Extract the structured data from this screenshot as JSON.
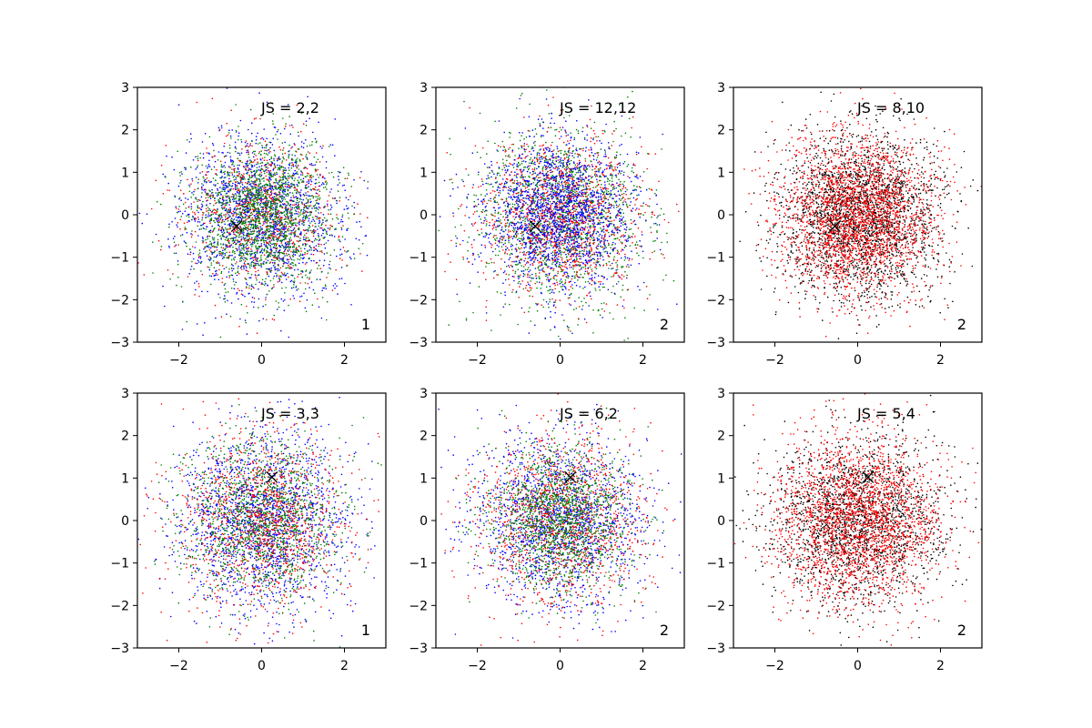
{
  "chart_data": [
    {
      "type": "scatter",
      "annotation": "JS = 2,2",
      "corner_label": "1",
      "marker": {
        "x": -0.6,
        "y": -0.27,
        "color": "#000000",
        "symbol": "x"
      },
      "xlim": [
        -3,
        3
      ],
      "ylim": [
        -3,
        3
      ],
      "xticks": [
        -2,
        0,
        2
      ],
      "yticks": [
        -3,
        -2,
        -1,
        0,
        1,
        2,
        3
      ],
      "series": [
        {
          "color": "#0000ff",
          "n": 1700,
          "mean": [
            0,
            0
          ],
          "std": 0.95
        },
        {
          "color": "#ff0000",
          "n": 850,
          "mean": [
            0,
            0
          ],
          "std": 0.9
        },
        {
          "color": "#008000",
          "n": 1700,
          "mean": [
            0,
            0
          ],
          "std": 0.85
        }
      ]
    },
    {
      "type": "scatter",
      "annotation": "JS = 12,12",
      "corner_label": "2",
      "marker": {
        "x": -0.6,
        "y": -0.27,
        "color": "#000000",
        "symbol": "x"
      },
      "xlim": [
        -3,
        3
      ],
      "ylim": [
        -3,
        3
      ],
      "xticks": [
        -2,
        0,
        2
      ],
      "yticks": [
        -3,
        -2,
        -1,
        0,
        1,
        2,
        3
      ],
      "series": [
        {
          "color": "#008000",
          "n": 1600,
          "mean": [
            0,
            0
          ],
          "std": 1.0
        },
        {
          "color": "#ff0000",
          "n": 1300,
          "mean": [
            0,
            0
          ],
          "std": 0.95
        },
        {
          "color": "#0000ff",
          "n": 1800,
          "mean": [
            0,
            0
          ],
          "std": 0.9
        }
      ]
    },
    {
      "type": "scatter",
      "annotation": "JS = 8,10",
      "corner_label": "2",
      "marker": {
        "x": -0.55,
        "y": -0.27,
        "color": "#000000",
        "symbol": "x"
      },
      "xlim": [
        -3,
        3
      ],
      "ylim": [
        -3,
        3
      ],
      "xticks": [
        -2,
        0,
        2
      ],
      "yticks": [
        -3,
        -2,
        -1,
        0,
        1,
        2,
        3
      ],
      "series": [
        {
          "color": "#000000",
          "n": 2400,
          "mean": [
            0,
            0
          ],
          "std": 0.95
        },
        {
          "color": "#ff0000",
          "n": 2600,
          "mean": [
            0,
            0
          ],
          "std": 0.95
        }
      ]
    },
    {
      "type": "scatter",
      "annotation": "JS = 3,3",
      "corner_label": "1",
      "marker": {
        "x": 0.25,
        "y": 1.02,
        "color": "#000000",
        "symbol": "x"
      },
      "xlim": [
        -3,
        3
      ],
      "ylim": [
        -3,
        3
      ],
      "xticks": [
        -2,
        0,
        2
      ],
      "yticks": [
        -3,
        -2,
        -1,
        0,
        1,
        2,
        3
      ],
      "series": [
        {
          "color": "#0000ff",
          "n": 1800,
          "mean": [
            0,
            0
          ],
          "std": 1.05
        },
        {
          "color": "#ff0000",
          "n": 1300,
          "mean": [
            0,
            0
          ],
          "std": 1.0
        },
        {
          "color": "#008000",
          "n": 1300,
          "mean": [
            0,
            0
          ],
          "std": 0.95
        }
      ]
    },
    {
      "type": "scatter",
      "annotation": "JS = 6,2",
      "corner_label": "2",
      "marker": {
        "x": 0.25,
        "y": 1.02,
        "color": "#000000",
        "symbol": "x"
      },
      "xlim": [
        -3,
        3
      ],
      "ylim": [
        -3,
        3
      ],
      "xticks": [
        -2,
        0,
        2
      ],
      "yticks": [
        -3,
        -2,
        -1,
        0,
        1,
        2,
        3
      ],
      "series": [
        {
          "color": "#0000ff",
          "n": 1700,
          "mean": [
            0,
            0
          ],
          "std": 1.0
        },
        {
          "color": "#ff0000",
          "n": 1300,
          "mean": [
            0,
            0
          ],
          "std": 1.0
        },
        {
          "color": "#008000",
          "n": 1500,
          "mean": [
            0,
            0
          ],
          "std": 0.85
        }
      ]
    },
    {
      "type": "scatter",
      "annotation": "JS = 5,4",
      "corner_label": "2",
      "marker": {
        "x": 0.25,
        "y": 1.02,
        "color": "#000000",
        "symbol": "x"
      },
      "xlim": [
        -3,
        3
      ],
      "ylim": [
        -3,
        3
      ],
      "xticks": [
        -2,
        0,
        2
      ],
      "yticks": [
        -3,
        -2,
        -1,
        0,
        1,
        2,
        3
      ],
      "series": [
        {
          "color": "#000000",
          "n": 2000,
          "mean": [
            0,
            0
          ],
          "std": 1.0
        },
        {
          "color": "#ff0000",
          "n": 2400,
          "mean": [
            0,
            0
          ],
          "std": 1.0
        }
      ]
    }
  ]
}
